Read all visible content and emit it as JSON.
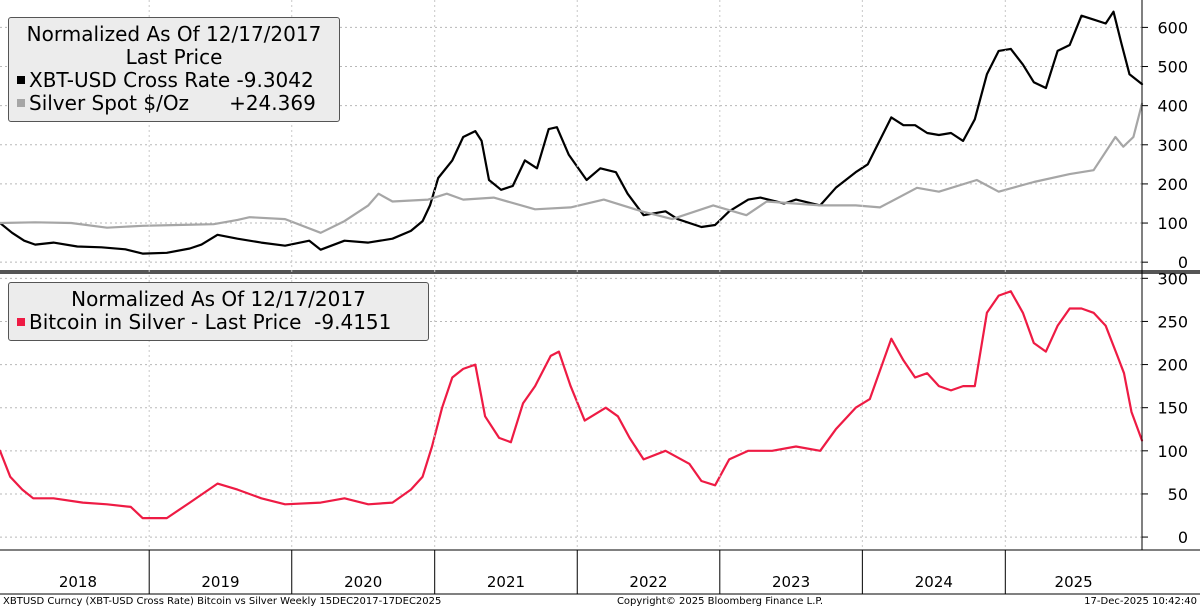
{
  "colors": {
    "bitcoin": "#000000",
    "silver": "#a6a6a6",
    "ratio": "#ee1b44"
  },
  "panel1": {
    "legend_title_1": "Normalized As Of 12/17/2017",
    "legend_title_2": "Last Price",
    "series_1_label": "XBT-USD Cross Rate",
    "series_1_value": "-9.3042",
    "series_2_label": "Silver Spot $/Oz",
    "series_2_value": "+24.369"
  },
  "panel2": {
    "legend_title": "Normalized As Of 12/17/2017",
    "series_label": "Bitcoin in Silver - Last Price",
    "series_value": "-9.4151"
  },
  "footer": {
    "left": "XBTUSD Curncy (XBT-USD Cross Rate) Bitcoin vs Silver Weekly 15DEC2017-17DEC2025",
    "center": "Copyright© 2025 Bloomberg Finance L.P.",
    "right": "17-Dec-2025 10:42:40"
  },
  "chart_data": [
    {
      "type": "line",
      "xlabel": "",
      "ylabel": "",
      "x_range": [
        "2017-12-15",
        "2025-12-17"
      ],
      "ylim": [
        -20,
        670
      ],
      "y_ticks": [
        0,
        100,
        200,
        300,
        400,
        500,
        600
      ],
      "x_tick_labels": [
        "2018",
        "2019",
        "2020",
        "2021",
        "2022",
        "2023",
        "2024",
        "2025"
      ],
      "grid": true,
      "legend_position": "top-left",
      "series": [
        {
          "name": "XBT-USD Cross Rate",
          "color": "#000000",
          "points": [
            [
              "2017-12-15",
              100
            ],
            [
              "2018-01-15",
              75
            ],
            [
              "2018-02-15",
              55
            ],
            [
              "2018-03-15",
              45
            ],
            [
              "2018-05-01",
              50
            ],
            [
              "2018-07-01",
              40
            ],
            [
              "2018-09-01",
              38
            ],
            [
              "2018-11-01",
              33
            ],
            [
              "2018-12-15",
              22
            ],
            [
              "2019-02-15",
              24
            ],
            [
              "2019-04-15",
              35
            ],
            [
              "2019-05-15",
              45
            ],
            [
              "2019-06-25",
              70
            ],
            [
              "2019-08-15",
              60
            ],
            [
              "2019-10-15",
              50
            ],
            [
              "2019-12-15",
              42
            ],
            [
              "2020-02-15",
              55
            ],
            [
              "2020-03-15",
              32
            ],
            [
              "2020-05-15",
              55
            ],
            [
              "2020-07-15",
              50
            ],
            [
              "2020-09-15",
              60
            ],
            [
              "2020-11-01",
              80
            ],
            [
              "2020-12-01",
              105
            ],
            [
              "2020-12-20",
              145
            ],
            [
              "2021-01-10",
              215
            ],
            [
              "2021-02-15",
              260
            ],
            [
              "2021-03-15",
              320
            ],
            [
              "2021-04-15",
              335
            ],
            [
              "2021-05-01",
              310
            ],
            [
              "2021-05-20",
              210
            ],
            [
              "2021-06-20",
              185
            ],
            [
              "2021-07-20",
              195
            ],
            [
              "2021-08-20",
              260
            ],
            [
              "2021-09-20",
              240
            ],
            [
              "2021-10-20",
              340
            ],
            [
              "2021-11-10",
              345
            ],
            [
              "2021-12-10",
              275
            ],
            [
              "2022-01-25",
              210
            ],
            [
              "2022-03-01",
              240
            ],
            [
              "2022-04-10",
              230
            ],
            [
              "2022-05-10",
              175
            ],
            [
              "2022-06-20",
              120
            ],
            [
              "2022-08-15",
              130
            ],
            [
              "2022-09-15",
              110
            ],
            [
              "2022-11-15",
              90
            ],
            [
              "2022-12-20",
              95
            ],
            [
              "2023-01-25",
              130
            ],
            [
              "2023-03-15",
              160
            ],
            [
              "2023-04-15",
              165
            ],
            [
              "2023-06-15",
              150
            ],
            [
              "2023-07-15",
              160
            ],
            [
              "2023-09-15",
              145
            ],
            [
              "2023-10-25",
              190
            ],
            [
              "2023-12-15",
              230
            ],
            [
              "2024-01-15",
              250
            ],
            [
              "2024-03-15",
              370
            ],
            [
              "2024-04-15",
              350
            ],
            [
              "2024-05-15",
              350
            ],
            [
              "2024-06-15",
              330
            ],
            [
              "2024-07-15",
              325
            ],
            [
              "2024-08-15",
              330
            ],
            [
              "2024-09-15",
              310
            ],
            [
              "2024-10-15",
              365
            ],
            [
              "2024-11-15",
              480
            ],
            [
              "2024-12-15",
              540
            ],
            [
              "2025-01-15",
              545
            ],
            [
              "2025-02-15",
              505
            ],
            [
              "2025-03-15",
              460
            ],
            [
              "2025-04-15",
              445
            ],
            [
              "2025-05-15",
              540
            ],
            [
              "2025-06-15",
              555
            ],
            [
              "2025-07-15",
              630
            ],
            [
              "2025-08-15",
              620
            ],
            [
              "2025-09-15",
              610
            ],
            [
              "2025-10-05",
              640
            ],
            [
              "2025-10-25",
              560
            ],
            [
              "2025-11-15",
              480
            ],
            [
              "2025-12-17",
              455
            ]
          ]
        },
        {
          "name": "Silver Spot $/Oz",
          "color": "#a6a6a6",
          "points": [
            [
              "2017-12-15",
              100
            ],
            [
              "2018-03-15",
              102
            ],
            [
              "2018-06-15",
              100
            ],
            [
              "2018-09-15",
              88
            ],
            [
              "2018-12-15",
              93
            ],
            [
              "2019-03-15",
              95
            ],
            [
              "2019-06-15",
              97
            ],
            [
              "2019-08-15",
              108
            ],
            [
              "2019-09-15",
              115
            ],
            [
              "2019-12-15",
              110
            ],
            [
              "2020-03-15",
              75
            ],
            [
              "2020-05-15",
              105
            ],
            [
              "2020-07-15",
              145
            ],
            [
              "2020-08-10",
              175
            ],
            [
              "2020-09-15",
              155
            ],
            [
              "2020-12-15",
              160
            ],
            [
              "2021-02-01",
              175
            ],
            [
              "2021-03-15",
              160
            ],
            [
              "2021-06-01",
              165
            ],
            [
              "2021-09-15",
              135
            ],
            [
              "2021-12-15",
              140
            ],
            [
              "2022-03-10",
              160
            ],
            [
              "2022-06-15",
              130
            ],
            [
              "2022-09-01",
              110
            ],
            [
              "2022-12-15",
              145
            ],
            [
              "2023-03-10",
              120
            ],
            [
              "2023-05-01",
              155
            ],
            [
              "2023-09-15",
              145
            ],
            [
              "2023-12-15",
              145
            ],
            [
              "2024-02-15",
              140
            ],
            [
              "2024-05-20",
              190
            ],
            [
              "2024-07-15",
              180
            ],
            [
              "2024-10-20",
              210
            ],
            [
              "2024-12-15",
              180
            ],
            [
              "2025-03-15",
              205
            ],
            [
              "2025-06-15",
              225
            ],
            [
              "2025-08-15",
              235
            ],
            [
              "2025-10-10",
              320
            ],
            [
              "2025-10-30",
              295
            ],
            [
              "2025-11-25",
              320
            ],
            [
              "2025-12-17",
              405
            ]
          ]
        }
      ]
    },
    {
      "type": "line",
      "xlabel": "",
      "ylabel": "",
      "x_range": [
        "2017-12-15",
        "2025-12-17"
      ],
      "ylim": [
        -15,
        305
      ],
      "y_ticks": [
        0,
        50,
        100,
        150,
        200,
        250,
        300
      ],
      "x_tick_labels": [
        "2018",
        "2019",
        "2020",
        "2021",
        "2022",
        "2023",
        "2024",
        "2025"
      ],
      "grid": true,
      "legend_position": "top-left",
      "series": [
        {
          "name": "Bitcoin in Silver - Last Price",
          "color": "#ee1b44",
          "points": [
            [
              "2017-12-15",
              100
            ],
            [
              "2018-01-10",
              70
            ],
            [
              "2018-02-10",
              55
            ],
            [
              "2018-03-10",
              45
            ],
            [
              "2018-05-01",
              45
            ],
            [
              "2018-07-15",
              40
            ],
            [
              "2018-09-15",
              38
            ],
            [
              "2018-11-15",
              35
            ],
            [
              "2018-12-15",
              22
            ],
            [
              "2019-02-15",
              22
            ],
            [
              "2019-04-15",
              40
            ],
            [
              "2019-06-25",
              62
            ],
            [
              "2019-08-15",
              55
            ],
            [
              "2019-10-15",
              45
            ],
            [
              "2019-12-15",
              38
            ],
            [
              "2020-03-15",
              40
            ],
            [
              "2020-05-15",
              45
            ],
            [
              "2020-07-15",
              38
            ],
            [
              "2020-09-15",
              40
            ],
            [
              "2020-11-01",
              55
            ],
            [
              "2020-12-01",
              70
            ],
            [
              "2020-12-25",
              105
            ],
            [
              "2021-01-20",
              150
            ],
            [
              "2021-02-15",
              185
            ],
            [
              "2021-03-15",
              195
            ],
            [
              "2021-04-15",
              200
            ],
            [
              "2021-05-10",
              140
            ],
            [
              "2021-06-15",
              115
            ],
            [
              "2021-07-15",
              110
            ],
            [
              "2021-08-15",
              155
            ],
            [
              "2021-09-15",
              175
            ],
            [
              "2021-10-25",
              210
            ],
            [
              "2021-11-15",
              215
            ],
            [
              "2021-12-15",
              175
            ],
            [
              "2022-01-20",
              135
            ],
            [
              "2022-03-15",
              150
            ],
            [
              "2022-04-15",
              140
            ],
            [
              "2022-05-15",
              115
            ],
            [
              "2022-06-20",
              90
            ],
            [
              "2022-08-15",
              100
            ],
            [
              "2022-10-15",
              85
            ],
            [
              "2022-11-15",
              65
            ],
            [
              "2022-12-20",
              60
            ],
            [
              "2023-01-25",
              90
            ],
            [
              "2023-03-15",
              100
            ],
            [
              "2023-05-15",
              100
            ],
            [
              "2023-07-15",
              105
            ],
            [
              "2023-09-15",
              100
            ],
            [
              "2023-10-25",
              125
            ],
            [
              "2023-12-15",
              150
            ],
            [
              "2024-01-20",
              160
            ],
            [
              "2024-03-15",
              230
            ],
            [
              "2024-04-15",
              205
            ],
            [
              "2024-05-15",
              185
            ],
            [
              "2024-06-15",
              190
            ],
            [
              "2024-07-15",
              175
            ],
            [
              "2024-08-15",
              170
            ],
            [
              "2024-09-15",
              175
            ],
            [
              "2024-10-15",
              175
            ],
            [
              "2024-11-15",
              260
            ],
            [
              "2024-12-15",
              280
            ],
            [
              "2025-01-15",
              285
            ],
            [
              "2025-02-15",
              260
            ],
            [
              "2025-03-15",
              225
            ],
            [
              "2025-04-15",
              215
            ],
            [
              "2025-05-15",
              245
            ],
            [
              "2025-06-15",
              265
            ],
            [
              "2025-07-15",
              265
            ],
            [
              "2025-08-15",
              260
            ],
            [
              "2025-09-15",
              245
            ],
            [
              "2025-10-15",
              210
            ],
            [
              "2025-11-01",
              190
            ],
            [
              "2025-11-20",
              145
            ],
            [
              "2025-12-17",
              112
            ]
          ]
        }
      ]
    }
  ]
}
